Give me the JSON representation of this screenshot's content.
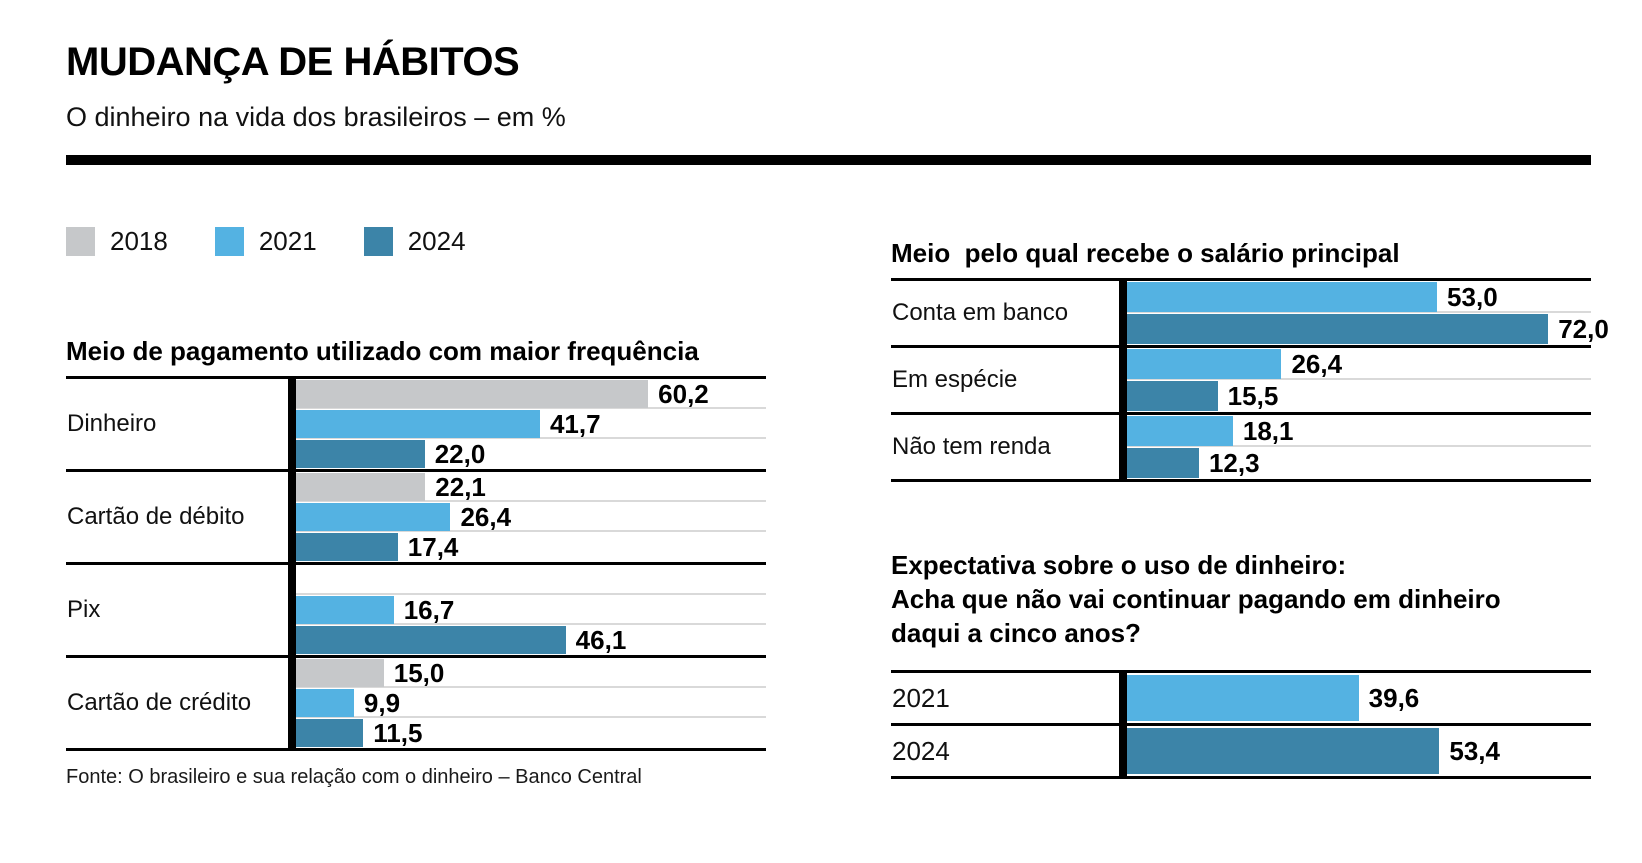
{
  "header": {
    "title": "MUDANÇA DE HÁBITOS",
    "subtitle": "O dinheiro na vida dos brasileiros – em %"
  },
  "legend": {
    "items": [
      {
        "label": "2018",
        "color": "#c6c8ca"
      },
      {
        "label": "2021",
        "color": "#54b2e2"
      },
      {
        "label": "2024",
        "color": "#3c84a8"
      }
    ]
  },
  "source": "Fonte: O brasileiro e sua relação com o dinheiro – Banco Central",
  "chart_data": [
    {
      "id": "payment-frequency",
      "type": "bar",
      "orientation": "horizontal",
      "unit": "%",
      "title": "Meio de pagamento utilizado com maior frequência",
      "categories": [
        "Dinheiro",
        "Cartão de débito",
        "Pix",
        "Cartão de crédito"
      ],
      "series": [
        {
          "name": "2018",
          "color": "#c6c8ca",
          "values": [
            60.2,
            22.1,
            null,
            15.0
          ]
        },
        {
          "name": "2021",
          "color": "#54b2e2",
          "values": [
            41.7,
            26.4,
            16.7,
            9.9
          ]
        },
        {
          "name": "2024",
          "color": "#3c84a8",
          "values": [
            22.0,
            17.4,
            46.1,
            11.5
          ]
        }
      ],
      "value_label_decimal": "comma"
    },
    {
      "id": "salary-method",
      "type": "bar",
      "orientation": "horizontal",
      "unit": "%",
      "title": "Meio  pelo qual recebe o salário principal",
      "categories": [
        "Conta em banco",
        "Em espécie",
        "Não tem renda"
      ],
      "series": [
        {
          "name": "2021",
          "color": "#54b2e2",
          "values": [
            53.0,
            26.4,
            18.1
          ]
        },
        {
          "name": "2024",
          "color": "#3c84a8",
          "values": [
            72.0,
            15.5,
            12.3
          ]
        }
      ],
      "value_label_decimal": "comma"
    },
    {
      "id": "cash-expectation",
      "type": "bar",
      "orientation": "horizontal",
      "unit": "%",
      "title": "Expectativa sobre o uso de dinheiro:\nAcha que não vai continuar pagando em dinheiro\ndaqui a cinco anos?",
      "categories": [
        "2021",
        "2024"
      ],
      "series": [
        {
          "name": "2021",
          "color": "#54b2e2",
          "values": [
            39.6,
            null
          ]
        },
        {
          "name": "2024",
          "color": "#3c84a8",
          "values": [
            null,
            53.4
          ]
        }
      ],
      "value_label_decimal": "comma"
    }
  ]
}
